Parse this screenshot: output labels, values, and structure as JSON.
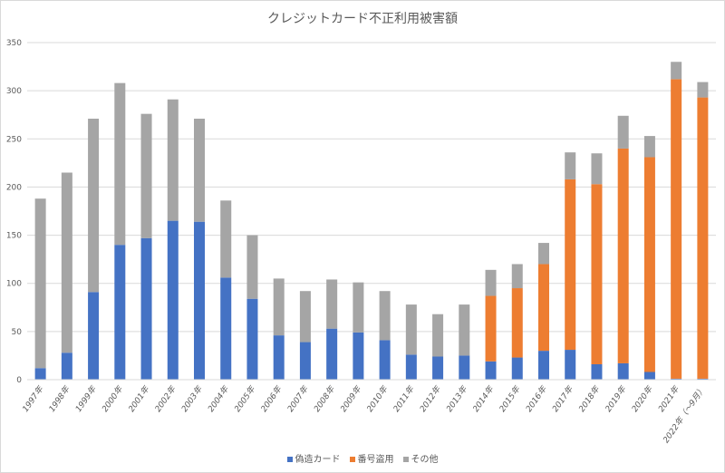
{
  "chart_data": {
    "type": "bar",
    "stacked": true,
    "title": "クレジットカード不正利用被害額",
    "xlabel": "",
    "ylabel": "",
    "ylim": [
      0,
      350
    ],
    "yticks": [
      0,
      50,
      100,
      150,
      200,
      250,
      300,
      350
    ],
    "grid": true,
    "legend": "bottom",
    "categories": [
      "1997年",
      "1998年",
      "1999年",
      "2000年",
      "2001年",
      "2002年",
      "2003年",
      "2004年",
      "2005年",
      "2006年",
      "2007年",
      "2008年",
      "2009年",
      "2010年",
      "2011年",
      "2012年",
      "2013年",
      "2014年",
      "2015年",
      "2016年",
      "2017年",
      "2018年",
      "2019年",
      "2020年",
      "2021年",
      "2022年（～9月）"
    ],
    "series": [
      {
        "name": "偽造カード",
        "color": "#4472c4",
        "values": [
          12,
          28,
          91,
          140,
          147,
          165,
          164,
          106,
          84,
          46,
          39,
          53,
          49,
          41,
          26,
          24,
          25,
          19,
          23,
          30,
          31,
          16,
          17,
          8,
          1,
          1
        ]
      },
      {
        "name": "番号盗用",
        "color": "#ed7d31",
        "values": [
          0,
          0,
          0,
          0,
          0,
          0,
          0,
          0,
          0,
          0,
          0,
          0,
          0,
          0,
          0,
          0,
          0,
          68,
          72,
          90,
          177,
          187,
          223,
          223,
          311,
          292
        ]
      },
      {
        "name": "その他",
        "color": "#a5a5a5",
        "values": [
          176,
          187,
          180,
          168,
          129,
          126,
          107,
          80,
          66,
          59,
          53,
          51,
          52,
          51,
          52,
          44,
          53,
          27,
          25,
          22,
          28,
          32,
          34,
          22,
          18,
          16
        ]
      }
    ]
  }
}
